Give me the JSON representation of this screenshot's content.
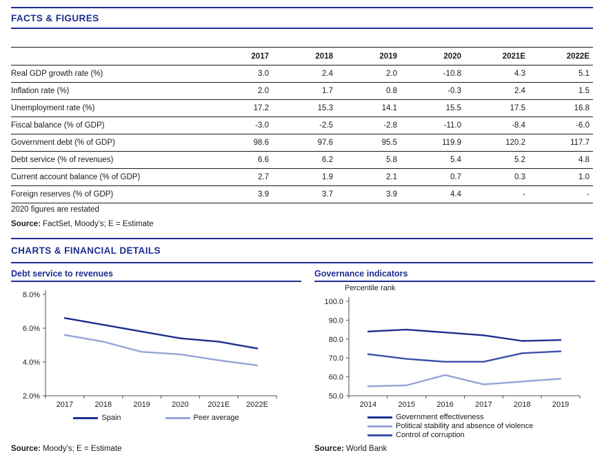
{
  "colors": {
    "navy": "#1c2d8f",
    "mid_blue": "#3a50ab",
    "light_blue": "#94a3d8",
    "axis": "#4d4d4d"
  },
  "sections": {
    "facts_title": "FACTS & FIGURES",
    "charts_title": "CHARTS & FINANCIAL DETAILS"
  },
  "table": {
    "year_headers": [
      "2017",
      "2018",
      "2019",
      "2020",
      "2021E",
      "2022E"
    ],
    "rows": [
      {
        "label": "Real GDP growth rate (%)",
        "values": [
          "3.0",
          "2.4",
          "2.0",
          "-10.8",
          "4.3",
          "5.1"
        ]
      },
      {
        "label": "Inflation rate (%)",
        "values": [
          "2.0",
          "1.7",
          "0.8",
          "-0.3",
          "2.4",
          "1.5"
        ]
      },
      {
        "label": "Unemployment rate (%)",
        "values": [
          "17.2",
          "15.3",
          "14.1",
          "15.5",
          "17.5",
          "16.8"
        ]
      },
      {
        "label": "Fiscal balance (% of GDP)",
        "values": [
          "-3.0",
          "-2.5",
          "-2.8",
          "-11.0",
          "-8.4",
          "-6.0"
        ]
      },
      {
        "label": "Government debt (% of GDP)",
        "values": [
          "98.6",
          "97.6",
          "95.5",
          "119.9",
          "120.2",
          "117.7"
        ]
      },
      {
        "label": "Debt service (% of revenues)",
        "values": [
          "6.6",
          "6.2",
          "5.8",
          "5.4",
          "5.2",
          "4.8"
        ]
      },
      {
        "label": "Current account balance (% of GDP)",
        "values": [
          "2.7",
          "1.9",
          "2.1",
          "0.7",
          "0.3",
          "1.0"
        ]
      },
      {
        "label": "Foreign reserves (% of GDP)",
        "values": [
          "3.9",
          "3.7",
          "3.9",
          "4.4",
          "-",
          "-"
        ]
      }
    ],
    "note": "2020 figures are restated",
    "source_label": "Source:",
    "source_text": "FactSet, Moody’s; E = Estimate"
  },
  "chart_data": [
    {
      "type": "line",
      "title": "Debt service to revenues",
      "categories": [
        "2017",
        "2018",
        "2019",
        "2020",
        "2021E",
        "2022E"
      ],
      "series": [
        {
          "name": "Spain",
          "color": "#1c2d8f",
          "values": [
            6.6,
            6.2,
            5.8,
            5.4,
            5.2,
            4.8
          ]
        },
        {
          "name": "Peer average",
          "color": "#94a3d8",
          "values": [
            5.6,
            5.2,
            4.6,
            4.45,
            4.1,
            3.8
          ]
        }
      ],
      "ylim": [
        2.0,
        8.0
      ],
      "yticks": [
        2.0,
        4.0,
        6.0,
        8.0
      ],
      "ytick_suffix": "%",
      "grid": false,
      "legend_position": "bottom-center",
      "source_label": "Source:",
      "source_text": "Moody’s; E = Estimate"
    },
    {
      "type": "line",
      "title": "Governance indicators",
      "axis_label": "Percentile rank",
      "categories": [
        "2014",
        "2015",
        "2016",
        "2017",
        "2018",
        "2019"
      ],
      "series": [
        {
          "name": "Government effectiveness",
          "color": "#1c2d8f",
          "values": [
            84,
            85,
            83.5,
            82,
            79,
            79.5
          ]
        },
        {
          "name": "Political stability and absence of violence",
          "color": "#94a3d8",
          "values": [
            55,
            55.5,
            61,
            56,
            57.5,
            59
          ]
        },
        {
          "name": "Control of corruption",
          "color": "#3a50ab",
          "values": [
            72,
            69.5,
            68,
            68,
            72.5,
            73.5
          ]
        }
      ],
      "ylim": [
        50,
        100
      ],
      "yticks": [
        50,
        60,
        70,
        80,
        90,
        100
      ],
      "ytick_suffix": "",
      "grid": false,
      "legend_position": "bottom-left",
      "source_label": "Source:",
      "source_text": "World Bank"
    }
  ]
}
